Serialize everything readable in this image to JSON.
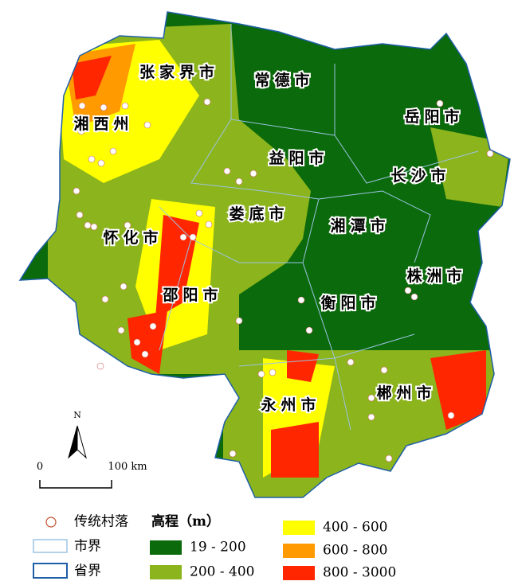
{
  "map": {
    "cities": [
      "张家界市",
      "常德市",
      "岳阳市",
      "湘西州",
      "益阳市",
      "长沙市",
      "娄底市",
      "湘潭市",
      "怀化市",
      "株洲市",
      "邵阳市",
      "衡阳市",
      "永州市",
      "郴州市"
    ],
    "north": "N",
    "scale": [
      "0",
      "100 km"
    ],
    "legend": {
      "village": "传统村落",
      "elevation_title": "高程（m）",
      "city_border": "市界",
      "province_border": "省界",
      "classes": [
        {
          "label": "19 - 200",
          "color": "#0b6a0b"
        },
        {
          "label": "200 - 400",
          "color": "#8cb41c"
        },
        {
          "label": "400 - 600",
          "color": "#ffff00"
        },
        {
          "label": "600 - 800",
          "color": "#ff9a00"
        },
        {
          "label": "800 - 3000",
          "color": "#ff2600"
        }
      ]
    }
  }
}
